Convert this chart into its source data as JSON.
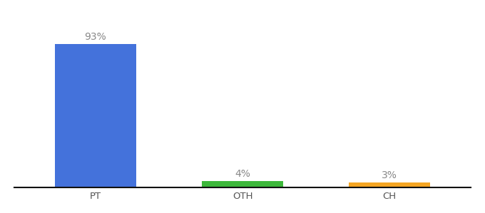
{
  "categories": [
    "PT",
    "OTH",
    "CH"
  ],
  "values": [
    93,
    4,
    3
  ],
  "bar_colors": [
    "#4472db",
    "#3db83b",
    "#f5a623"
  ],
  "label_texts": [
    "93%",
    "4%",
    "3%"
  ],
  "title": "",
  "label_fontsize": 10,
  "tick_fontsize": 9.5,
  "ylim": [
    0,
    105
  ],
  "bar_width": 0.55,
  "background_color": "#ffffff",
  "axis_line_color": "#111111",
  "label_color": "#888888"
}
